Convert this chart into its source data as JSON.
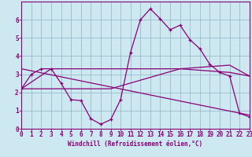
{
  "xlabel": "Windchill (Refroidissement éolien,°C)",
  "xlim": [
    0,
    23
  ],
  "ylim": [
    0,
    7
  ],
  "xticks": [
    0,
    1,
    2,
    3,
    4,
    5,
    6,
    7,
    8,
    9,
    10,
    11,
    12,
    13,
    14,
    15,
    16,
    17,
    18,
    19,
    20,
    21,
    22,
    23
  ],
  "yticks": [
    0,
    1,
    2,
    3,
    4,
    5,
    6
  ],
  "bg_color": "#cde8f0",
  "line_color": "#880077",
  "grid_color": "#99bbcc",
  "line1_x": [
    0,
    1,
    2,
    3,
    4,
    5,
    6,
    7,
    8,
    9,
    10,
    11,
    12,
    13,
    14,
    15,
    16,
    17,
    18,
    19,
    20,
    21,
    22,
    23
  ],
  "line1_y": [
    2.2,
    3.0,
    3.3,
    3.3,
    2.5,
    1.6,
    1.55,
    0.55,
    0.25,
    0.5,
    1.6,
    4.2,
    6.0,
    6.6,
    6.05,
    5.45,
    5.7,
    4.9,
    4.4,
    3.55,
    3.1,
    2.9,
    0.85,
    0.65
  ],
  "line2_x": [
    0,
    3,
    10,
    16,
    21,
    23
  ],
  "line2_y": [
    2.2,
    3.3,
    3.3,
    3.3,
    3.1,
    2.9
  ],
  "line3_x": [
    0,
    23
  ],
  "line3_y": [
    3.3,
    0.75
  ],
  "line4_x": [
    0,
    9,
    16,
    21,
    23
  ],
  "line4_y": [
    2.2,
    2.2,
    3.3,
    3.5,
    2.9
  ],
  "tick_fontsize": 5.5,
  "xlabel_fontsize": 5.5
}
